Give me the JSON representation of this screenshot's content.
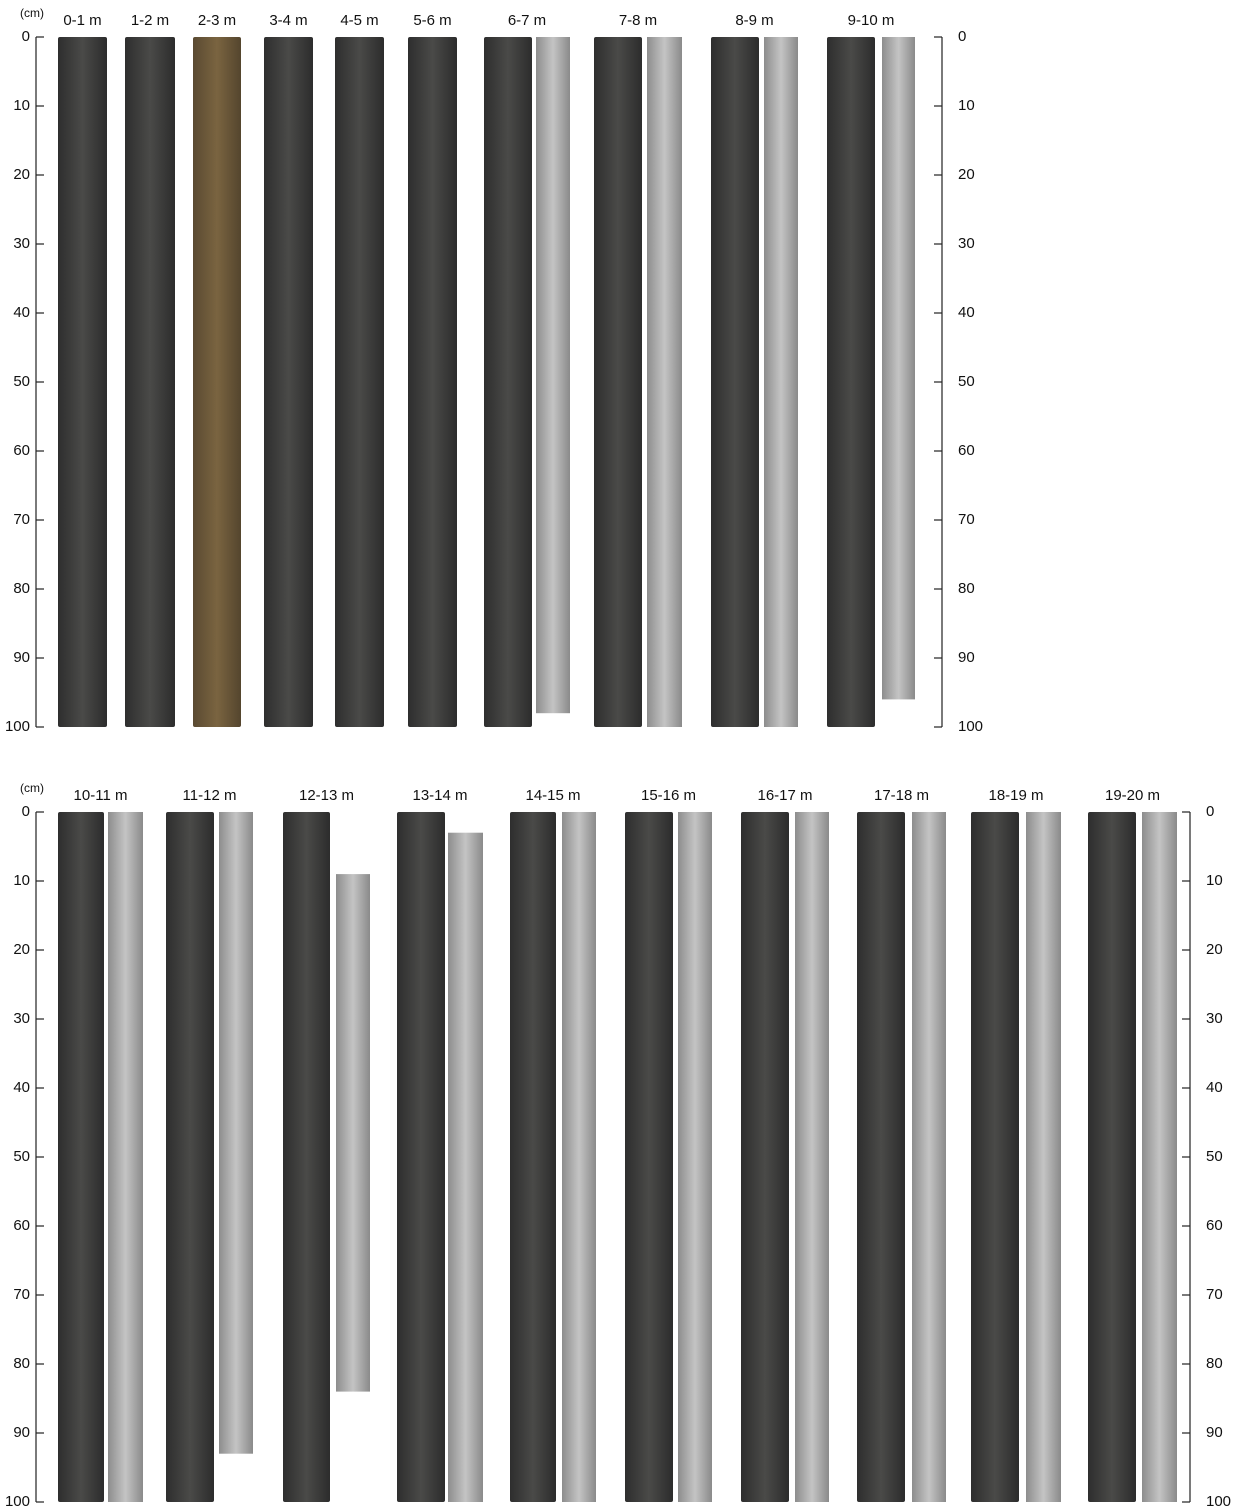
{
  "panels": [
    {
      "unit": "(cm)",
      "ylim": [
        0,
        100
      ],
      "yticks": [
        0,
        10,
        20,
        30,
        40,
        50,
        60,
        70,
        80,
        90,
        100
      ],
      "cores": [
        "0-1 m",
        "1-2 m",
        "2-3 m",
        "3-4 m",
        "4-5 m",
        "5-6 m",
        "6-7 m",
        "7-8 m",
        "8-9 m",
        "9-10 m"
      ]
    },
    {
      "unit": "(cm)",
      "ylim": [
        0,
        100
      ],
      "yticks": [
        0,
        10,
        20,
        30,
        40,
        50,
        60,
        70,
        80,
        90,
        100
      ],
      "cores": [
        "10-11 m",
        "11-12 m",
        "12-13 m",
        "13-14 m",
        "14-15 m",
        "15-16 m",
        "16-17 m",
        "17-18 m",
        "18-19 m",
        "19-20 m"
      ]
    }
  ]
}
